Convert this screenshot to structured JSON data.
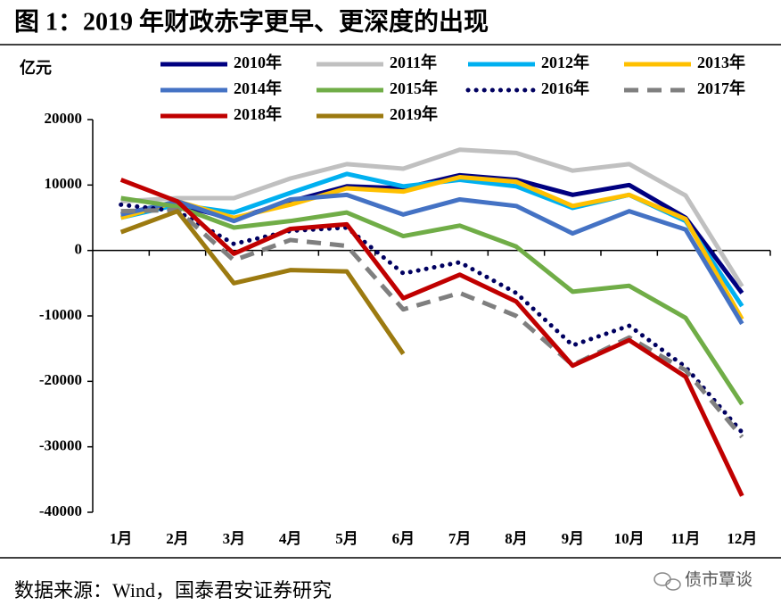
{
  "chart_data": {
    "type": "line",
    "title": "图 1：2019 年财政赤字更早、更深度的出现",
    "y_axis_label": "亿元",
    "source": "数据来源：Wind，国泰君安证券研究",
    "watermark": "债市覃谈",
    "categories": [
      "1月",
      "2月",
      "3月",
      "4月",
      "5月",
      "6月",
      "7月",
      "8月",
      "9月",
      "10月",
      "11月",
      "12月"
    ],
    "ylim": [
      -40000,
      20000
    ],
    "yticks": [
      20000,
      10000,
      0,
      -10000,
      -20000,
      -30000,
      -40000
    ],
    "series": [
      {
        "name": "2010年",
        "color": "#000080",
        "style": "solid",
        "values": [
          5500,
          7000,
          4800,
          7500,
          9800,
          9500,
          11500,
          10800,
          8500,
          10000,
          5000,
          -6500
        ]
      },
      {
        "name": "2011年",
        "color": "#c0c0c0",
        "style": "solid",
        "values": [
          7500,
          8000,
          8000,
          11000,
          13200,
          12500,
          15400,
          14900,
          12200,
          13200,
          8400,
          -5500
        ]
      },
      {
        "name": "2012年",
        "color": "#00b0f0",
        "style": "solid",
        "values": [
          5000,
          7000,
          5800,
          8800,
          11700,
          9800,
          10800,
          9800,
          6500,
          8500,
          4500,
          -8500
        ]
      },
      {
        "name": "2013年",
        "color": "#ffc000",
        "style": "solid",
        "values": [
          5000,
          7500,
          5000,
          7000,
          9500,
          9000,
          11200,
          10500,
          6800,
          8500,
          4800,
          -10500
        ]
      },
      {
        "name": "2014年",
        "color": "#4472c4",
        "style": "solid",
        "values": [
          5500,
          7500,
          4500,
          7800,
          8500,
          5500,
          7800,
          6800,
          2600,
          6000,
          3200,
          -11200
        ]
      },
      {
        "name": "2015年",
        "color": "#70ad47",
        "style": "solid",
        "values": [
          8000,
          6700,
          3500,
          4500,
          5800,
          2200,
          3800,
          600,
          -6300,
          -5400,
          -10300,
          -23500
        ]
      },
      {
        "name": "2016年",
        "color": "#000060",
        "style": "dotted",
        "values": [
          7000,
          6000,
          1000,
          3000,
          3500,
          -3500,
          -1800,
          -6500,
          -14500,
          -11500,
          -17800,
          -27800
        ]
      },
      {
        "name": "2017年",
        "color": "#7f7f7f",
        "style": "dashed",
        "values": [
          6000,
          6200,
          -1500,
          1600,
          700,
          -9000,
          -6500,
          -10000,
          -17500,
          -13300,
          -18300,
          -28500
        ]
      },
      {
        "name": "2018年",
        "color": "#c00000",
        "style": "solid",
        "values": [
          10800,
          7500,
          -500,
          3300,
          4000,
          -7300,
          -3700,
          -7800,
          -17600,
          -13700,
          -19300,
          -37500
        ]
      },
      {
        "name": "2019年",
        "color": "#9c7a10",
        "style": "solid",
        "values": [
          2800,
          6000,
          -5000,
          -3000,
          -3200,
          -15800,
          null,
          null,
          null,
          null,
          null,
          null
        ]
      }
    ]
  }
}
